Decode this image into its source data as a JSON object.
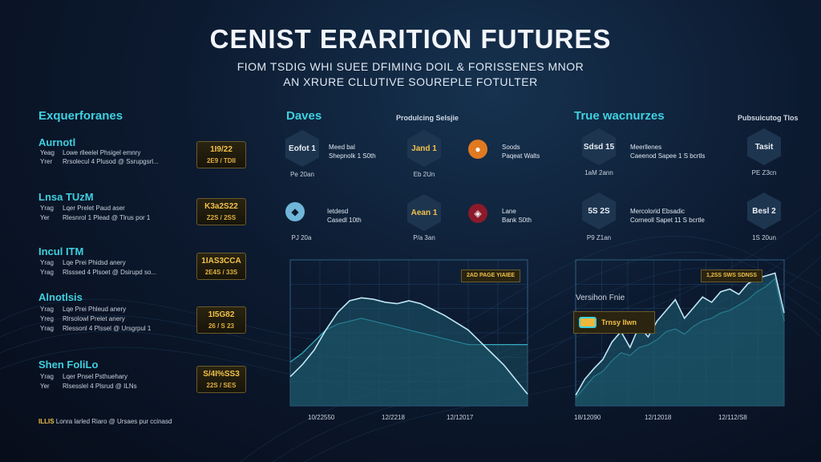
{
  "header": {
    "title": "CENIST ERARITION FUTURES",
    "subtitle_line1": "FIOM TSDIG WHI SUEE DFIMING DOIL & FORISSENES MNOR",
    "subtitle_line2": "AN XRURE CLLUTIVE SOUREPLE FOTULTER"
  },
  "left": {
    "heading": "Exquerforanes",
    "sections": [
      {
        "title": "Aurnotl",
        "rows": [
          {
            "k": "Yeag",
            "v": "Lowe rlleelel Phsigel emnry"
          },
          {
            "k": "Yrer",
            "v": "Rrsolecul 4 Plusod @ Ssrupgsrl..."
          }
        ],
        "badge_top": "1I9/22",
        "badge_bottom": "2E9 / TDII"
      },
      {
        "title": "Lnsa TUzM",
        "rows": [
          {
            "k": "Yrag",
            "v": "Lqer Prelet Paud aser"
          },
          {
            "k": "Yer",
            "v": "Rlesnrol 1 Plead @ Tlrus por 1"
          }
        ],
        "badge_top": "K3a2S22",
        "badge_bottom": "Z2S / 2SS"
      },
      {
        "title": "Incul ITM",
        "rows": [
          {
            "k": "Yrag",
            "v": "Lqe Prei Phidsd anery"
          },
          {
            "k": "Yrag",
            "v": "Rlsssed 4 Plsoet @ Dsirupd so..."
          }
        ],
        "badge_top": "1IAS3CCA",
        "badge_bottom": "2E4S / 33S"
      },
      {
        "title": "Alnotlsis",
        "rows": [
          {
            "k": "Yrag",
            "v": "Lqe Prei Phleud anery"
          },
          {
            "k": "Yreg",
            "v": "Rlrsolowl Prelet anery"
          },
          {
            "k": "Yrag",
            "v": "Rlessonl 4 Plssel @ Ursgrpul 1"
          }
        ],
        "badge_top": "1I5G82",
        "badge_bottom": "26 / S 23"
      },
      {
        "title": "Shen FoliLo",
        "rows": [
          {
            "k": "Yrag",
            "v": "Lqer Pnsel Psthuehary"
          },
          {
            "k": "Yer",
            "v": "Rlsesslel 4 Plsrud @ ILNs"
          }
        ],
        "badge_top": "S/4I%SS3",
        "badge_bottom": "22S / SES"
      }
    ],
    "footer_label": "ILLIS",
    "footer_text": "Lonra larled Riaro @ Ursaes pur ccinasd"
  },
  "middle": {
    "heading": "Daves",
    "note": "Produlcing Selsjie",
    "items": [
      {
        "hex": "Eofot 1",
        "hex_label": "Pe 20an",
        "text1": "Meed bal",
        "text2": "Shepnolk 1 S0th"
      },
      {
        "hex": "Jand 1",
        "hex_label": "Eb 2Un",
        "text1": "Soods",
        "text2": "Paqeat Walts"
      },
      {
        "hex": "S",
        "hex_label": "PJ 20a",
        "text1": "Ietdesd",
        "text2": "Casedl 10th"
      },
      {
        "hex": "Aean 1",
        "hex_label": "P/a 3an",
        "text1": "Lane",
        "text2": "Bank S0th"
      }
    ],
    "chart_tag": "2AD PAGE YIAIEE",
    "xticks": [
      "10/22550",
      "12/2218",
      "12/12017"
    ]
  },
  "right": {
    "heading": "True wacnurzes",
    "note": "Pubsuicutog Tlos",
    "items": [
      {
        "hex": "Sdsd 15",
        "hex_label": "1aM 2ann",
        "text1": "Meerllenes",
        "text2": "Caeenod Sapee 1 S bcrtls"
      },
      {
        "hex": "Tasit",
        "hex_label": "PE Z3cn",
        "text1": "",
        "text2": ""
      },
      {
        "hex": "5S 2S",
        "hex_label": "P9 Z1an",
        "text1": "Mercolorid Ebsadic",
        "text2": "Corneoll Sapet 11 S bcrtle"
      },
      {
        "hex": "Besl 2",
        "hex_label": "1S 20un",
        "text1": "",
        "text2": ""
      }
    ],
    "chart_tag": "1,2SS SWS SDNSS",
    "legend_title": "Versihon Fnie",
    "legend_label": "Trnsy Ilwn",
    "xticks": [
      "18/12090",
      "12/12018",
      "12/112/S8"
    ]
  },
  "colors": {
    "accent": "#3fd0e0",
    "gold": "#f3c24a",
    "chart_line": "#bfe6f5",
    "chart_fill": "#1e5a6e"
  },
  "chart_data": [
    {
      "type": "area",
      "title": "",
      "x": [
        0,
        1,
        2,
        3,
        4,
        5,
        6,
        7,
        8,
        9,
        10,
        11,
        12,
        13,
        14,
        15,
        16,
        17,
        18,
        19,
        20
      ],
      "values": [
        20,
        28,
        38,
        52,
        64,
        72,
        74,
        73,
        71,
        70,
        72,
        70,
        66,
        62,
        57,
        52,
        44,
        36,
        28,
        18,
        8
      ],
      "ylim": [
        0,
        100
      ],
      "secondary_values": [
        30,
        36,
        44,
        52,
        56,
        58,
        60,
        58,
        56,
        54,
        52,
        50,
        48,
        46,
        44,
        42,
        42,
        42,
        42,
        42,
        42
      ]
    },
    {
      "type": "line",
      "title": "",
      "x": [
        0,
        1,
        2,
        3,
        4,
        5,
        6,
        7,
        8,
        9,
        10,
        11,
        12,
        13,
        14,
        15,
        16,
        17,
        18,
        19,
        20,
        21,
        22,
        23
      ],
      "values": [
        8,
        20,
        28,
        35,
        48,
        56,
        44,
        60,
        52,
        64,
        72,
        80,
        66,
        74,
        82,
        78,
        86,
        88,
        84,
        92,
        96,
        98,
        100,
        70
      ],
      "secondary_values": [
        6,
        14,
        22,
        26,
        34,
        40,
        38,
        44,
        46,
        50,
        56,
        58,
        54,
        60,
        64,
        66,
        70,
        72,
        76,
        80,
        86,
        90,
        96,
        64
      ],
      "ylim": [
        0,
        110
      ]
    }
  ]
}
